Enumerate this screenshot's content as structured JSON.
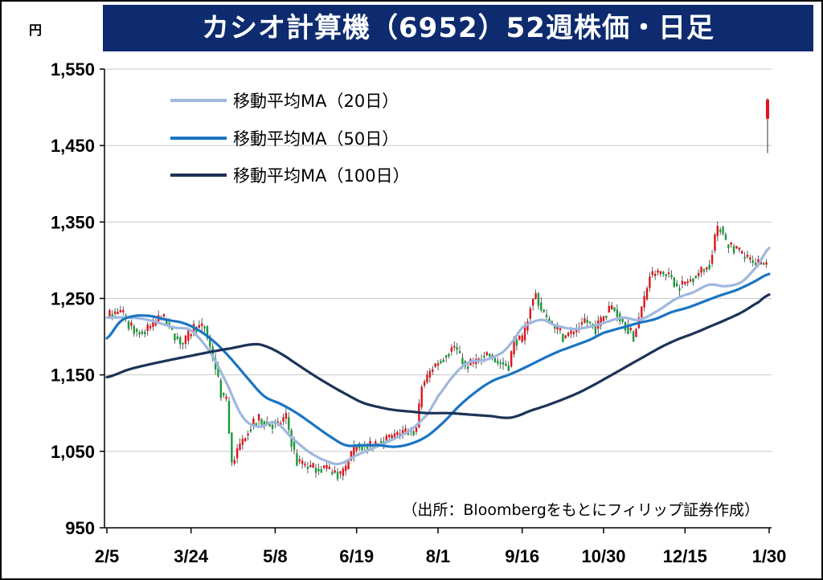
{
  "title": "カシオ計算機（6952）52週株価・日足",
  "unit": "円",
  "source": "（出所：Bloombergをもとにフィリップ証券作成）",
  "chart_data": {
    "type": "candlestick",
    "ylim": [
      950,
      1550
    ],
    "yticks": [
      950,
      1050,
      1150,
      1250,
      1350,
      1450,
      1550
    ],
    "ytick_labels": [
      "950",
      "1,050",
      "1,150",
      "1,250",
      "1,350",
      "1,450",
      "1,550"
    ],
    "xtick_labels": [
      "2/5",
      "3/24",
      "5/8",
      "6/19",
      "8/1",
      "9/16",
      "10/30",
      "12/15",
      "1/30"
    ],
    "n_days": 245,
    "xtick_index": [
      0,
      31,
      62,
      92,
      122,
      153,
      183,
      213,
      244
    ],
    "grid": "horizontal",
    "up_color": "#e0141e",
    "down_color": "#1a9a3a",
    "legend_position": "top-left",
    "series": [
      {
        "name": "移動平均MA（20日）",
        "color": "#9fb8de",
        "knots": [
          [
            0,
            1225
          ],
          [
            8,
            1225
          ],
          [
            15,
            1222
          ],
          [
            25,
            1212
          ],
          [
            31,
            1208
          ],
          [
            38,
            1180
          ],
          [
            44,
            1140
          ],
          [
            50,
            1095
          ],
          [
            56,
            1082
          ],
          [
            62,
            1088
          ],
          [
            68,
            1068
          ],
          [
            75,
            1048
          ],
          [
            82,
            1036
          ],
          [
            86,
            1034
          ],
          [
            92,
            1045
          ],
          [
            98,
            1054
          ],
          [
            105,
            1065
          ],
          [
            112,
            1078
          ],
          [
            118,
            1098
          ],
          [
            122,
            1122
          ],
          [
            128,
            1150
          ],
          [
            133,
            1166
          ],
          [
            140,
            1170
          ],
          [
            146,
            1180
          ],
          [
            150,
            1196
          ],
          [
            153,
            1212
          ],
          [
            160,
            1222
          ],
          [
            165,
            1215
          ],
          [
            172,
            1210
          ],
          [
            178,
            1213
          ],
          [
            183,
            1218
          ],
          [
            190,
            1225
          ],
          [
            196,
            1222
          ],
          [
            203,
            1234
          ],
          [
            210,
            1250
          ],
          [
            216,
            1258
          ],
          [
            222,
            1268
          ],
          [
            228,
            1266
          ],
          [
            234,
            1272
          ],
          [
            240,
            1294
          ],
          [
            244,
            1316
          ]
        ]
      },
      {
        "name": "移動平均MA（50日）",
        "color": "#1a75c2",
        "knots": [
          [
            0,
            1198
          ],
          [
            5,
            1220
          ],
          [
            10,
            1227
          ],
          [
            16,
            1227
          ],
          [
            22,
            1222
          ],
          [
            28,
            1218
          ],
          [
            34,
            1208
          ],
          [
            40,
            1192
          ],
          [
            46,
            1170
          ],
          [
            52,
            1145
          ],
          [
            58,
            1122
          ],
          [
            64,
            1112
          ],
          [
            70,
            1100
          ],
          [
            76,
            1085
          ],
          [
            82,
            1070
          ],
          [
            88,
            1058
          ],
          [
            94,
            1058
          ],
          [
            100,
            1058
          ],
          [
            106,
            1056
          ],
          [
            112,
            1060
          ],
          [
            118,
            1070
          ],
          [
            124,
            1088
          ],
          [
            130,
            1110
          ],
          [
            136,
            1128
          ],
          [
            142,
            1142
          ],
          [
            148,
            1150
          ],
          [
            153,
            1158
          ],
          [
            160,
            1170
          ],
          [
            166,
            1180
          ],
          [
            172,
            1188
          ],
          [
            178,
            1196
          ],
          [
            183,
            1205
          ],
          [
            190,
            1212
          ],
          [
            196,
            1218
          ],
          [
            202,
            1223
          ],
          [
            208,
            1232
          ],
          [
            214,
            1238
          ],
          [
            220,
            1246
          ],
          [
            226,
            1254
          ],
          [
            232,
            1261
          ],
          [
            238,
            1271
          ],
          [
            244,
            1282
          ]
        ]
      },
      {
        "name": "移動平均MA（100日）",
        "color": "#1c3358",
        "knots": [
          [
            0,
            1147
          ],
          [
            8,
            1157
          ],
          [
            16,
            1164
          ],
          [
            24,
            1170
          ],
          [
            31,
            1175
          ],
          [
            38,
            1180
          ],
          [
            46,
            1185
          ],
          [
            54,
            1190
          ],
          [
            58,
            1188
          ],
          [
            64,
            1178
          ],
          [
            70,
            1164
          ],
          [
            76,
            1150
          ],
          [
            82,
            1137
          ],
          [
            88,
            1125
          ],
          [
            94,
            1114
          ],
          [
            100,
            1108
          ],
          [
            106,
            1104
          ],
          [
            112,
            1102
          ],
          [
            118,
            1100
          ],
          [
            126,
            1100
          ],
          [
            134,
            1098
          ],
          [
            142,
            1096
          ],
          [
            146,
            1094
          ],
          [
            150,
            1095
          ],
          [
            156,
            1103
          ],
          [
            162,
            1110
          ],
          [
            168,
            1118
          ],
          [
            174,
            1127
          ],
          [
            180,
            1138
          ],
          [
            186,
            1150
          ],
          [
            192,
            1162
          ],
          [
            198,
            1174
          ],
          [
            204,
            1186
          ],
          [
            210,
            1196
          ],
          [
            216,
            1204
          ],
          [
            222,
            1213
          ],
          [
            228,
            1222
          ],
          [
            234,
            1232
          ],
          [
            240,
            1245
          ],
          [
            244,
            1255
          ]
        ]
      }
    ],
    "price_path": [
      [
        0,
        1228
      ],
      [
        5,
        1232
      ],
      [
        8,
        1215
      ],
      [
        12,
        1205
      ],
      [
        16,
        1212
      ],
      [
        20,
        1228
      ],
      [
        24,
        1205
      ],
      [
        28,
        1190
      ],
      [
        32,
        1213
      ],
      [
        36,
        1212
      ],
      [
        40,
        1160
      ],
      [
        42,
        1125
      ],
      [
        44,
        1115
      ],
      [
        46,
        1035
      ],
      [
        48,
        1050
      ],
      [
        52,
        1080
      ],
      [
        56,
        1092
      ],
      [
        60,
        1085
      ],
      [
        63,
        1085
      ],
      [
        66,
        1095
      ],
      [
        68,
        1062
      ],
      [
        70,
        1035
      ],
      [
        74,
        1030
      ],
      [
        78,
        1028
      ],
      [
        82,
        1025
      ],
      [
        86,
        1018
      ],
      [
        88,
        1028
      ],
      [
        92,
        1060
      ],
      [
        96,
        1055
      ],
      [
        100,
        1064
      ],
      [
        104,
        1068
      ],
      [
        108,
        1072
      ],
      [
        112,
        1075
      ],
      [
        114,
        1080
      ],
      [
        116,
        1135
      ],
      [
        120,
        1160
      ],
      [
        124,
        1175
      ],
      [
        128,
        1188
      ],
      [
        132,
        1160
      ],
      [
        136,
        1168
      ],
      [
        140,
        1178
      ],
      [
        144,
        1166
      ],
      [
        148,
        1162
      ],
      [
        150,
        1195
      ],
      [
        153,
        1195
      ],
      [
        156,
        1240
      ],
      [
        158,
        1255
      ],
      [
        160,
        1235
      ],
      [
        164,
        1215
      ],
      [
        168,
        1200
      ],
      [
        172,
        1206
      ],
      [
        176,
        1222
      ],
      [
        180,
        1210
      ],
      [
        183,
        1228
      ],
      [
        186,
        1240
      ],
      [
        190,
        1220
      ],
      [
        194,
        1200
      ],
      [
        198,
        1250
      ],
      [
        200,
        1280
      ],
      [
        204,
        1285
      ],
      [
        208,
        1278
      ],
      [
        210,
        1265
      ],
      [
        214,
        1272
      ],
      [
        218,
        1284
      ],
      [
        222,
        1295
      ],
      [
        224,
        1332
      ],
      [
        226,
        1345
      ],
      [
        228,
        1322
      ],
      [
        232,
        1312
      ],
      [
        236,
        1300
      ],
      [
        240,
        1296
      ],
      [
        243,
        1295
      ]
    ],
    "last_candle": {
      "open": 1485,
      "close": 1510,
      "high": 1512,
      "low": 1440
    }
  }
}
